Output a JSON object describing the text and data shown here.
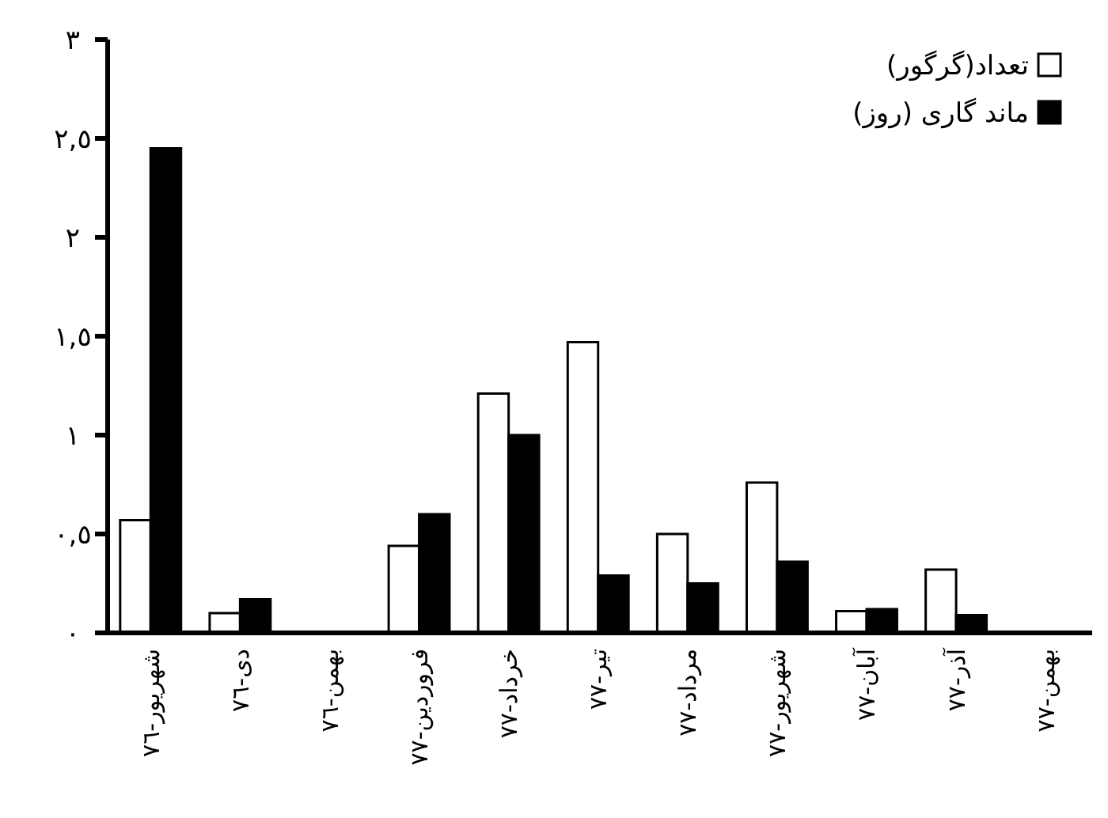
{
  "chart_data": {
    "type": "bar",
    "categories": [
      "شهریور-٧٦",
      "دی-٧٦",
      "بهمن-٧٦",
      "فروردین-٧٧",
      "خرداد-٧٧",
      "تیر-٧٧",
      "مرداد-٧٧",
      "شهریور-٧٧",
      "آبان-٧٧",
      "آذر-٧٧",
      "بهمن-٧٧"
    ],
    "series": [
      {
        "name": "تعداد(گرگور)",
        "color": "#ffffff",
        "values": [
          0.57,
          0.1,
          0,
          0.44,
          1.21,
          1.47,
          0.5,
          0.76,
          0.11,
          0.32,
          0
        ]
      },
      {
        "name": "ماند گاری (روز)",
        "color": "#000000",
        "values": [
          2.45,
          0.17,
          0,
          0.6,
          1.0,
          0.29,
          0.25,
          0.36,
          0.12,
          0.09,
          0
        ]
      }
    ],
    "ylim": [
      0,
      3
    ],
    "yticks": [
      {
        "value": 0,
        "label": "٠"
      },
      {
        "value": 0.5,
        "label": "٠,٥"
      },
      {
        "value": 1,
        "label": "١"
      },
      {
        "value": 1.5,
        "label": "١,٥"
      },
      {
        "value": 2,
        "label": "٢"
      },
      {
        "value": 2.5,
        "label": "٢,٥"
      },
      {
        "value": 3,
        "label": "٣"
      }
    ],
    "legend": "top right",
    "grid": false
  }
}
